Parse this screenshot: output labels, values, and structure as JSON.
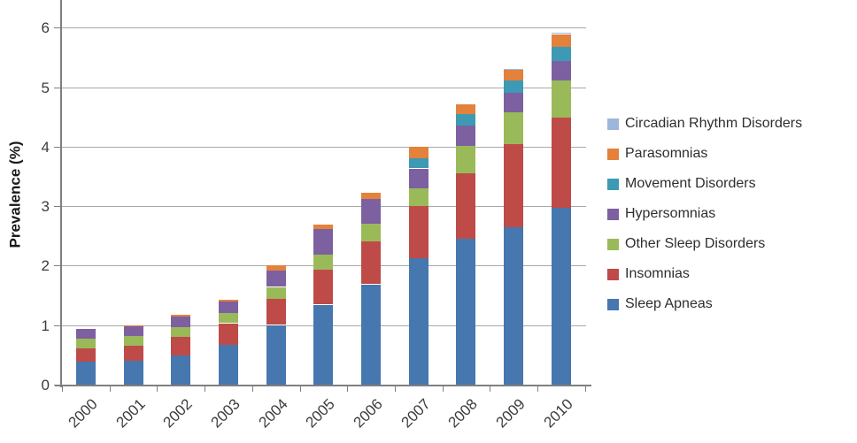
{
  "chart_data": {
    "type": "bar",
    "stacked": true,
    "title": "",
    "xlabel": "",
    "ylabel": "Prevalence (%)",
    "ylim": [
      0,
      6.45
    ],
    "yticks": [
      0,
      1,
      2,
      3,
      4,
      5,
      6
    ],
    "grid": "horizontal-gray",
    "legend_position": "right",
    "categories": [
      "2000",
      "2001",
      "2002",
      "2003",
      "2004",
      "2005",
      "2006",
      "2007",
      "2008",
      "2009",
      "2010"
    ],
    "series": [
      {
        "name": "Sleep Apneas",
        "color": "#4677AE",
        "values": [
          0.39,
          0.4,
          0.49,
          0.67,
          1.0,
          1.34,
          1.68,
          2.12,
          2.45,
          2.64,
          2.97
        ]
      },
      {
        "name": "Insomnias",
        "color": "#BE4B48",
        "values": [
          0.22,
          0.25,
          0.31,
          0.36,
          0.45,
          0.6,
          0.72,
          0.88,
          1.1,
          1.4,
          1.51
        ]
      },
      {
        "name": "Other Sleep Disorders",
        "color": "#9ABA59",
        "values": [
          0.16,
          0.16,
          0.16,
          0.17,
          0.19,
          0.25,
          0.3,
          0.3,
          0.47,
          0.53,
          0.64
        ]
      },
      {
        "name": "Hypersomnias",
        "color": "#7D60A0",
        "values": [
          0.17,
          0.17,
          0.18,
          0.2,
          0.27,
          0.43,
          0.42,
          0.33,
          0.34,
          0.33,
          0.32
        ]
      },
      {
        "name": "Movement Disorders",
        "color": "#3D99B4",
        "values": [
          0.0,
          0.0,
          0.0,
          0.0,
          0.0,
          0.0,
          0.0,
          0.17,
          0.19,
          0.21,
          0.24
        ]
      },
      {
        "name": "Parasomnias",
        "color": "#E4813B",
        "values": [
          0.0,
          0.01,
          0.03,
          0.03,
          0.09,
          0.07,
          0.11,
          0.2,
          0.16,
          0.18,
          0.21
        ]
      },
      {
        "name": "Circadian Rhythm Disorders",
        "color": "#9DB6DC",
        "values": [
          0.0,
          0.0,
          0.0,
          0.0,
          0.0,
          0.0,
          0.0,
          0.0,
          0.0,
          0.01,
          0.02
        ]
      }
    ],
    "legend_top_to_bottom": [
      "Circadian Rhythm Disorders",
      "Parasomnias",
      "Movement Disorders",
      "Hypersomnias",
      "Other Sleep Disorders",
      "Insomnias",
      "Sleep Apneas"
    ],
    "totals": [
      0.94,
      0.99,
      1.17,
      1.43,
      2.0,
      2.69,
      3.23,
      4.0,
      4.71,
      5.3,
      5.91
    ]
  },
  "style_colors": {
    "gridline": "#a8a8a8",
    "axis": "#7f7f7f",
    "tick_text": "#3c3c3c",
    "background": "#ffffff"
  }
}
